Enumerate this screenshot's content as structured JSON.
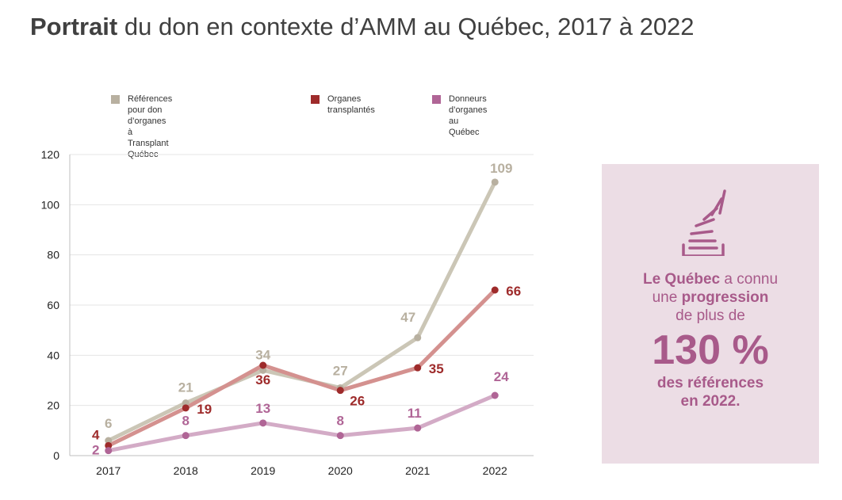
{
  "title": {
    "bold": "Portrait",
    "rest": " du don en contexte d’AMM au Québec, 2017 à 2022"
  },
  "colors": {
    "references": "#cbc6b6",
    "organes": "#d4918f",
    "donneurs": "#d3abc6",
    "references_marker": "#b8b0a0",
    "organes_marker": "#9e2b2b",
    "donneurs_marker": "#b06596",
    "callout_bg": "#ecdde5",
    "callout_text": "#a85a8a"
  },
  "legend": [
    {
      "label": "Références pour don d’organes\nà Transplant Québec",
      "color": "#b8b0a0"
    },
    {
      "label": "Organes\ntransplantés",
      "color": "#9e2b2b"
    },
    {
      "label": "Donneurs d’organes au Québec",
      "color": "#b06596"
    }
  ],
  "chart_data": {
    "type": "line",
    "x": [
      "2017",
      "2018",
      "2019",
      "2020",
      "2021",
      "2022"
    ],
    "ylim": [
      0,
      120
    ],
    "yticks": [
      0,
      20,
      40,
      60,
      80,
      100,
      120
    ],
    "grid": true,
    "legend_position": "top",
    "series": [
      {
        "name": "Références pour don d’organes à Transplant Québec",
        "values": [
          6,
          21,
          34,
          27,
          47,
          109
        ]
      },
      {
        "name": "Organes transplantés",
        "values": [
          4,
          19,
          36,
          26,
          35,
          66
        ]
      },
      {
        "name": "Donneurs d’organes au Québec",
        "values": [
          2,
          8,
          13,
          8,
          11,
          24
        ]
      }
    ]
  },
  "callout": {
    "line1_bold": "Le Québec",
    "line1_rest": " a connu",
    "line2_pre": "une ",
    "line2_bold": "progression",
    "line3": "de plus de",
    "big": "130 %",
    "tail1": "des références",
    "tail2": "en 2022.",
    "icon": "megaphone-icon"
  }
}
